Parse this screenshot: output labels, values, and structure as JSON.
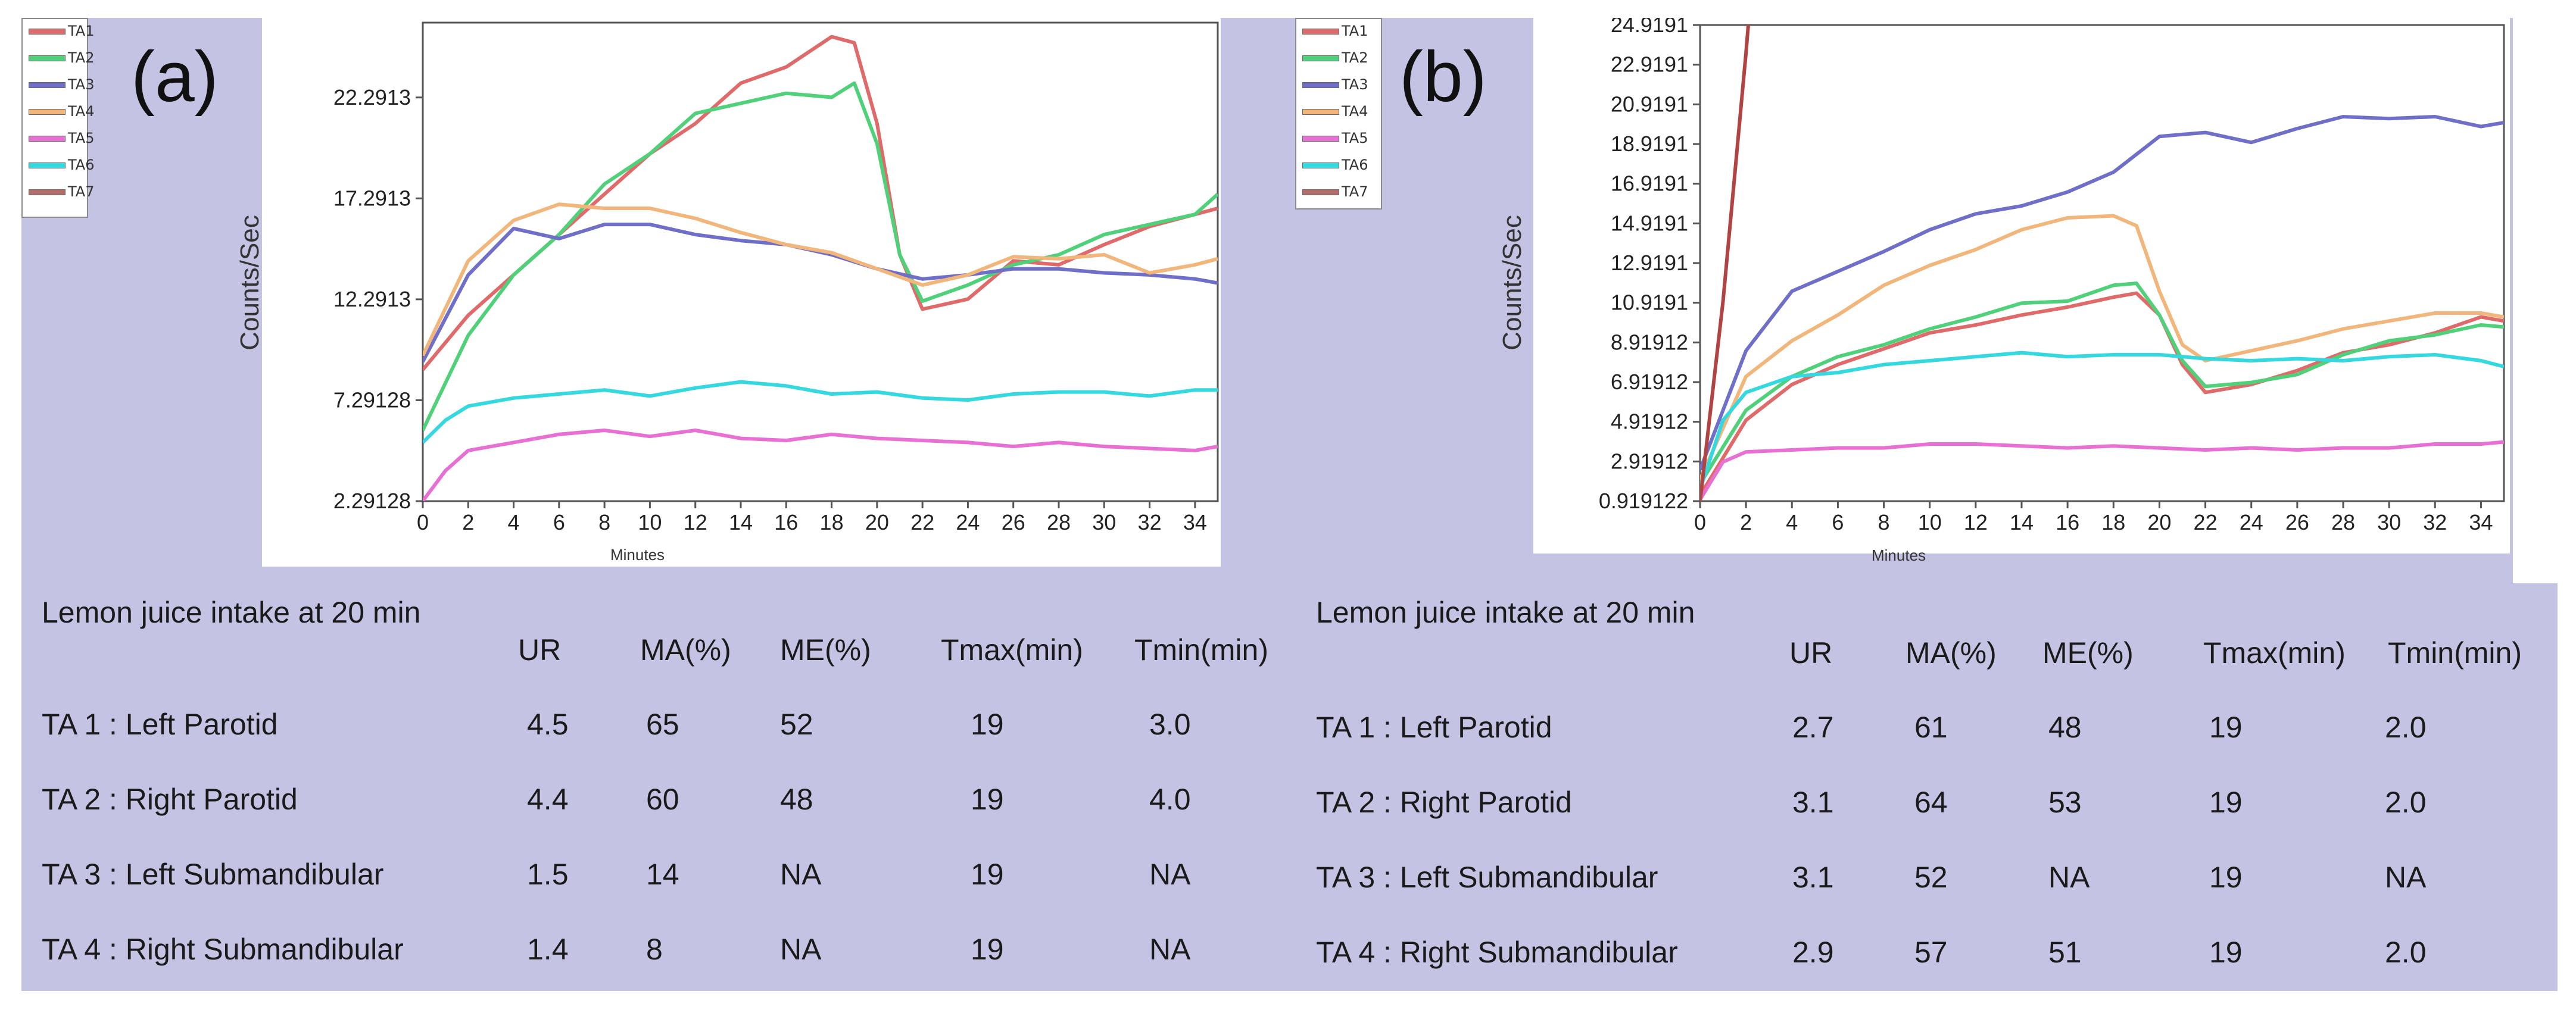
{
  "panels": [
    {
      "label": "(a)",
      "legend": [
        {
          "name": "TA1",
          "color": "#e06a6a"
        },
        {
          "name": "TA2",
          "color": "#4fd17a"
        },
        {
          "name": "TA3",
          "color": "#6f6fc9"
        },
        {
          "name": "TA4",
          "color": "#f2b57a"
        },
        {
          "name": "TA5",
          "color": "#e86fd3"
        },
        {
          "name": "TA6",
          "color": "#33d9de"
        },
        {
          "name": "TA7",
          "color": "#b56a6a"
        }
      ],
      "chart_data": {
        "type": "line",
        "ylabel": "Counts/Sec",
        "xlabel": "Minutes",
        "xlim": [
          0,
          35
        ],
        "ylim": [
          2.29128,
          26.0
        ],
        "yticks": [
          "2.29128",
          "7.29128",
          "12.2913",
          "17.2913",
          "22.2913"
        ],
        "ytick_values": [
          2.29128,
          7.29128,
          12.2913,
          17.2913,
          22.2913
        ],
        "xticks": [
          "0",
          "2",
          "4",
          "6",
          "8",
          "10",
          "12",
          "14",
          "16",
          "18",
          "20",
          "22",
          "24",
          "26",
          "28",
          "30",
          "32",
          "34"
        ],
        "series": [
          {
            "name": "TA1",
            "color": "#e06a6a",
            "x": [
              0,
              2,
              4,
              6,
              8,
              10,
              12,
              14,
              16,
              18,
              19,
              20,
              21,
              22,
              24,
              26,
              28,
              30,
              32,
              34,
              35
            ],
            "y": [
              8.8,
              11.5,
              13.5,
              15.5,
              17.5,
              19.5,
              21.0,
              23.0,
              23.8,
              25.3,
              25.0,
              21.0,
              14.5,
              11.8,
              12.3,
              14.2,
              14.0,
              15.0,
              15.9,
              16.5,
              16.8
            ]
          },
          {
            "name": "TA2",
            "color": "#4fd17a",
            "x": [
              0,
              2,
              4,
              6,
              8,
              10,
              12,
              14,
              16,
              18,
              19,
              20,
              21,
              22,
              24,
              26,
              28,
              30,
              32,
              34,
              35
            ],
            "y": [
              5.8,
              10.5,
              13.5,
              15.5,
              18.0,
              19.5,
              21.5,
              22.0,
              22.5,
              22.3,
              23.0,
              20.0,
              14.5,
              12.2,
              13.0,
              14.0,
              14.5,
              15.5,
              16.0,
              16.5,
              17.5
            ]
          },
          {
            "name": "TA3",
            "color": "#6f6fc9",
            "x": [
              0,
              2,
              4,
              6,
              8,
              10,
              12,
              14,
              16,
              18,
              20,
              22,
              24,
              26,
              28,
              30,
              32,
              34,
              35
            ],
            "y": [
              9.2,
              13.5,
              15.8,
              15.3,
              16.0,
              16.0,
              15.5,
              15.2,
              15.0,
              14.5,
              13.8,
              13.3,
              13.5,
              13.8,
              13.8,
              13.6,
              13.5,
              13.3,
              13.1
            ]
          },
          {
            "name": "TA4",
            "color": "#f2b57a",
            "x": [
              0,
              2,
              4,
              6,
              8,
              10,
              12,
              14,
              16,
              18,
              20,
              22,
              24,
              26,
              28,
              30,
              32,
              34,
              35
            ],
            "y": [
              9.5,
              14.2,
              16.2,
              17.0,
              16.8,
              16.8,
              16.3,
              15.6,
              15.0,
              14.6,
              13.8,
              13.0,
              13.5,
              14.4,
              14.3,
              14.5,
              13.6,
              14.0,
              14.3
            ]
          },
          {
            "name": "TA5",
            "color": "#e86fd3",
            "x": [
              0,
              1,
              2,
              4,
              6,
              8,
              10,
              12,
              14,
              16,
              18,
              20,
              22,
              24,
              26,
              28,
              30,
              32,
              34,
              35
            ],
            "y": [
              2.3,
              3.8,
              4.8,
              5.2,
              5.6,
              5.8,
              5.5,
              5.8,
              5.4,
              5.3,
              5.6,
              5.4,
              5.3,
              5.2,
              5.0,
              5.2,
              5.0,
              4.9,
              4.8,
              5.0
            ]
          },
          {
            "name": "TA6",
            "color": "#33d9de",
            "x": [
              0,
              1,
              2,
              4,
              6,
              8,
              10,
              12,
              14,
              16,
              18,
              20,
              22,
              24,
              26,
              28,
              30,
              32,
              34,
              35
            ],
            "y": [
              5.2,
              6.3,
              7.0,
              7.4,
              7.6,
              7.8,
              7.5,
              7.9,
              8.2,
              8.0,
              7.6,
              7.7,
              7.4,
              7.3,
              7.6,
              7.7,
              7.7,
              7.5,
              7.8,
              7.8
            ]
          }
        ]
      },
      "table": {
        "title": "Lemon juice intake at 20 min",
        "headers": [
          "UR",
          "MA(%)",
          "ME(%)",
          "Tmax(min)",
          "Tmin(min)"
        ],
        "rows": [
          {
            "label": "TA 1 : Left Parotid",
            "values": [
              "4.5",
              "65",
              "52",
              "19",
              "3.0"
            ]
          },
          {
            "label": "TA 2 : Right Parotid",
            "values": [
              "4.4",
              "60",
              "48",
              "19",
              "4.0"
            ]
          },
          {
            "label": "TA 3 : Left Submandibular",
            "values": [
              "1.5",
              "14",
              "NA",
              "19",
              "NA"
            ]
          },
          {
            "label": "TA 4 : Right Submandibular",
            "values": [
              "1.4",
              "8",
              "NA",
              "19",
              "NA"
            ]
          }
        ]
      }
    },
    {
      "label": "(b)",
      "legend": [
        {
          "name": "TA1",
          "color": "#e06a6a"
        },
        {
          "name": "TA2",
          "color": "#4fd17a"
        },
        {
          "name": "TA3",
          "color": "#6f6fc9"
        },
        {
          "name": "TA4",
          "color": "#f2b57a"
        },
        {
          "name": "TA5",
          "color": "#e86fd3"
        },
        {
          "name": "TA6",
          "color": "#33d9de"
        },
        {
          "name": "TA7",
          "color": "#b56a6a"
        }
      ],
      "chart_data": {
        "type": "line",
        "ylabel": "Counts/Sec",
        "xlabel": "Minutes",
        "xlim": [
          0,
          35
        ],
        "ylim": [
          0.919122,
          24.9191
        ],
        "yticks": [
          "0.919122",
          "2.91912",
          "4.91912",
          "6.91912",
          "8.91912",
          "10.9191",
          "12.9191",
          "14.9191",
          "16.9191",
          "18.9191",
          "20.9191",
          "22.9191",
          "24.9191"
        ],
        "ytick_values": [
          0.919122,
          2.91912,
          4.91912,
          6.91912,
          8.91912,
          10.9191,
          12.9191,
          14.9191,
          16.9191,
          18.9191,
          20.9191,
          22.9191,
          24.9191
        ],
        "xticks": [
          "0",
          "2",
          "4",
          "6",
          "8",
          "10",
          "12",
          "14",
          "16",
          "18",
          "20",
          "22",
          "24",
          "26",
          "28",
          "30",
          "32",
          "34"
        ],
        "series": [
          {
            "name": "TA1",
            "color": "#e06a6a",
            "x": [
              0,
              2,
              4,
              6,
              8,
              10,
              12,
              14,
              16,
              18,
              19,
              20,
              21,
              22,
              24,
              26,
              28,
              30,
              32,
              34,
              35
            ],
            "y": [
              1.2,
              5.0,
              6.8,
              7.8,
              8.6,
              9.4,
              9.8,
              10.3,
              10.7,
              11.2,
              11.4,
              10.3,
              7.8,
              6.4,
              6.8,
              7.5,
              8.4,
              8.8,
              9.4,
              10.2,
              10.0
            ]
          },
          {
            "name": "TA2",
            "color": "#4fd17a",
            "x": [
              0,
              2,
              4,
              6,
              8,
              10,
              12,
              14,
              16,
              18,
              19,
              20,
              21,
              22,
              24,
              26,
              28,
              30,
              32,
              34,
              35
            ],
            "y": [
              1.8,
              5.5,
              7.2,
              8.2,
              8.8,
              9.6,
              10.2,
              10.9,
              11.0,
              11.8,
              11.9,
              10.3,
              8.0,
              6.7,
              6.9,
              7.3,
              8.3,
              9.0,
              9.3,
              9.8,
              9.7
            ]
          },
          {
            "name": "TA3",
            "color": "#6f6fc9",
            "x": [
              0,
              2,
              4,
              6,
              8,
              10,
              12,
              14,
              16,
              18,
              20,
              22,
              24,
              26,
              28,
              30,
              32,
              34,
              35
            ],
            "y": [
              2.5,
              8.5,
              11.5,
              12.5,
              13.5,
              14.6,
              15.4,
              15.8,
              16.5,
              17.5,
              19.3,
              19.5,
              19.0,
              19.7,
              20.3,
              20.2,
              20.3,
              19.8,
              20.0
            ]
          },
          {
            "name": "TA4",
            "color": "#f2b57a",
            "x": [
              0,
              2,
              4,
              6,
              8,
              10,
              12,
              14,
              16,
              18,
              19,
              20,
              21,
              22,
              24,
              26,
              28,
              30,
              32,
              34,
              35
            ],
            "y": [
              2.0,
              7.2,
              9.0,
              10.3,
              11.8,
              12.8,
              13.6,
              14.6,
              15.2,
              15.3,
              14.8,
              11.5,
              8.8,
              8.0,
              8.5,
              9.0,
              9.6,
              10.0,
              10.4,
              10.4,
              10.2
            ]
          },
          {
            "name": "TA5",
            "color": "#e86fd3",
            "x": [
              0,
              1,
              2,
              4,
              6,
              8,
              10,
              12,
              14,
              16,
              18,
              20,
              22,
              24,
              26,
              28,
              30,
              32,
              34,
              35
            ],
            "y": [
              1.0,
              2.9,
              3.4,
              3.5,
              3.6,
              3.6,
              3.8,
              3.8,
              3.7,
              3.6,
              3.7,
              3.6,
              3.5,
              3.6,
              3.5,
              3.6,
              3.6,
              3.8,
              3.8,
              3.9
            ]
          },
          {
            "name": "TA6",
            "color": "#33d9de",
            "x": [
              0,
              1,
              2,
              4,
              6,
              8,
              10,
              12,
              14,
              16,
              18,
              20,
              22,
              24,
              26,
              28,
              30,
              32,
              34,
              35
            ],
            "y": [
              1.5,
              5.0,
              6.4,
              7.2,
              7.4,
              7.8,
              8.0,
              8.2,
              8.4,
              8.2,
              8.3,
              8.3,
              8.1,
              8.0,
              8.1,
              8.0,
              8.2,
              8.3,
              8.0,
              7.7
            ]
          },
          {
            "name": "TA7",
            "color": "#b14343",
            "x": [
              0,
              1,
              2,
              2.1
            ],
            "y": [
              0.919122,
              11.0,
              23.5,
              24.9191
            ]
          }
        ]
      },
      "table": {
        "title": "Lemon juice intake at 20 min",
        "headers": [
          "UR",
          "MA(%)",
          "ME(%)",
          "Tmax(min)",
          "Tmin(min)"
        ],
        "rows": [
          {
            "label": "TA 1 : Left Parotid",
            "values": [
              "2.7",
              "61",
              "48",
              "19",
              "2.0"
            ]
          },
          {
            "label": "TA 2 : Right Parotid",
            "values": [
              "3.1",
              "64",
              "53",
              "19",
              "2.0"
            ]
          },
          {
            "label": "TA 3 : Left Submandibular",
            "values": [
              "3.1",
              "52",
              "NA",
              "19",
              "NA"
            ]
          },
          {
            "label": "TA 4 : Right Submandibular",
            "values": [
              "2.9",
              "57",
              "51",
              "19",
              "2.0"
            ]
          }
        ]
      }
    }
  ]
}
